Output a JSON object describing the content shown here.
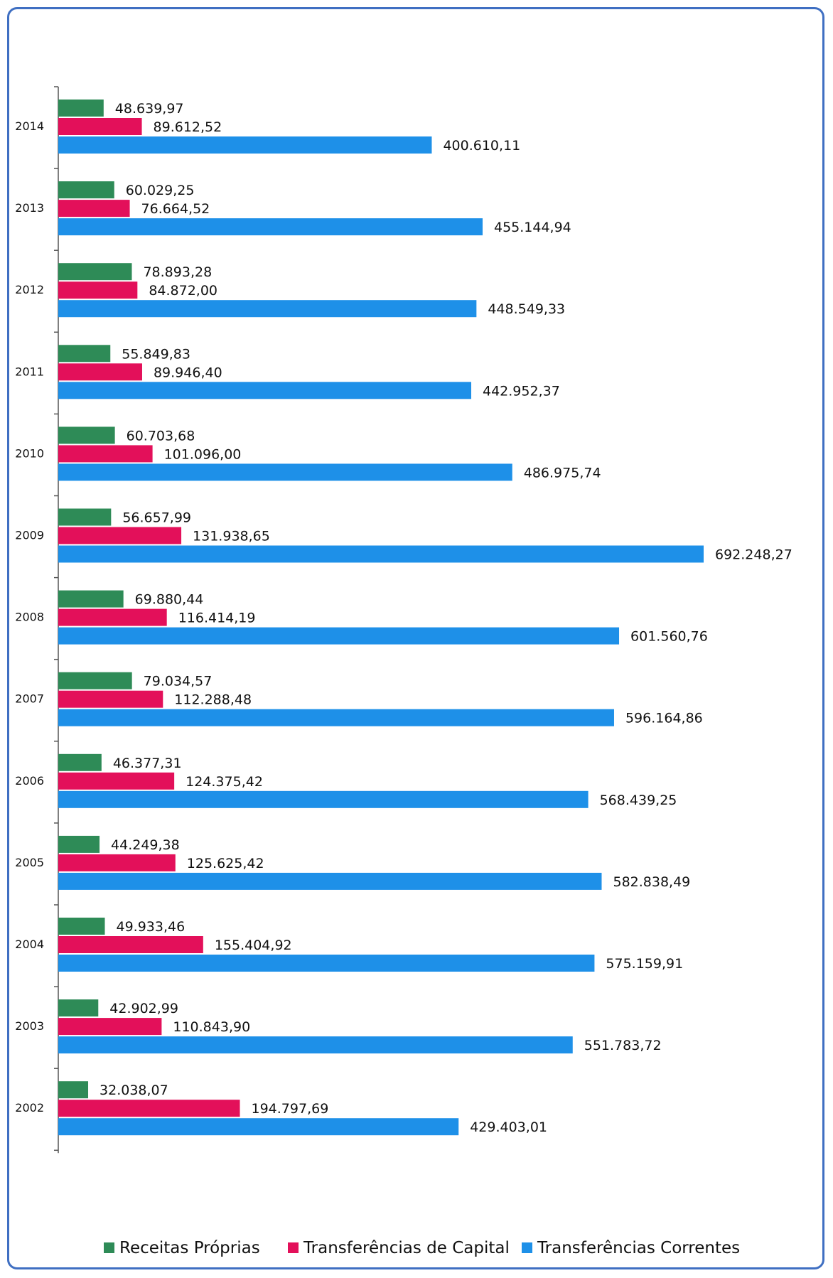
{
  "chart_data": {
    "type": "bar",
    "orientation": "horizontal",
    "categories": [
      "2014",
      "2013",
      "2012",
      "2011",
      "2010",
      "2009",
      "2008",
      "2007",
      "2006",
      "2005",
      "2004",
      "2003",
      "2002"
    ],
    "series": [
      {
        "name": "Receitas Próprias",
        "color": "#2e8b57",
        "values": [
          48639.97,
          60029.25,
          78893.28,
          55849.83,
          60703.68,
          56657.99,
          69880.44,
          79034.57,
          46377.31,
          44249.38,
          49933.46,
          42902.99,
          32038.07
        ],
        "labels": [
          "48.639,97",
          "60.029,25",
          "78.893,28",
          "55.849,83",
          "60.703,68",
          "56.657,99",
          "69.880,44",
          "79.034,57",
          "46.377,31",
          "44.249,38",
          "49.933,46",
          "42.902,99",
          "32.038,07"
        ]
      },
      {
        "name": "Transferências de Capital",
        "color": "#e3105a",
        "values": [
          89612.52,
          76664.52,
          84872.0,
          89946.4,
          101096.0,
          131938.65,
          116414.19,
          112288.48,
          124375.42,
          125625.42,
          155404.92,
          110843.9,
          194797.69
        ],
        "labels": [
          "89.612,52",
          "76.664,52",
          "84.872,00",
          "89.946,40",
          "101.096,00",
          "131.938,65",
          "116.414,19",
          "112.288,48",
          "124.375,42",
          "125.625,42",
          "155.404,92",
          "110.843,90",
          "194.797,69"
        ]
      },
      {
        "name": "Transferências Correntes",
        "color": "#1e90e8",
        "values": [
          400610.11,
          455144.94,
          448549.33,
          442952.37,
          486975.74,
          692248.27,
          601560.76,
          596164.86,
          568439.25,
          582838.49,
          575159.91,
          551783.72,
          429403.01
        ],
        "labels": [
          "400.610,11",
          "455.144,94",
          "448.549,33",
          "442.952,37",
          "486.975,74",
          "692.248,27",
          "601.560,76",
          "596.164,86",
          "568.439,25",
          "582.838,49",
          "575.159,91",
          "551.783,72",
          "429.403,01"
        ]
      }
    ],
    "xlim": [
      0,
      692248.27
    ],
    "grid": false,
    "legend_position": "bottom"
  }
}
